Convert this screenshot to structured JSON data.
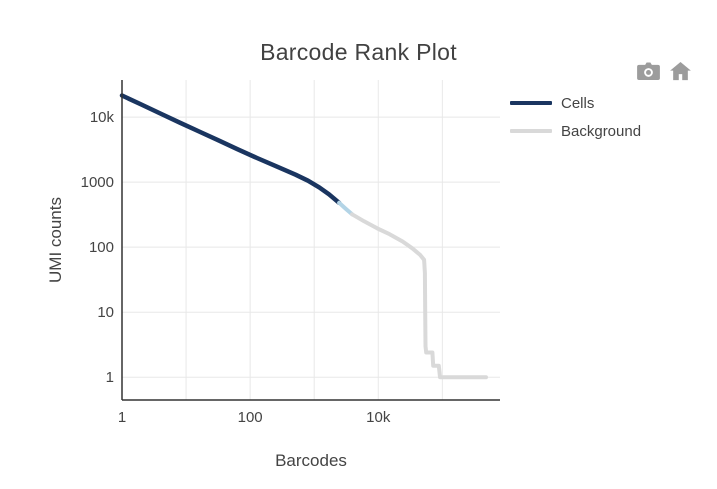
{
  "chart_data": {
    "type": "line",
    "title": "Barcode Rank Plot",
    "xlabel": "Barcodes",
    "ylabel": "UMI counts",
    "x_scale": "log",
    "y_scale": "log",
    "x_range_log10": [
      0,
      5.9
    ],
    "y_range_log10": [
      -0.35,
      4.57
    ],
    "grid": true,
    "legend_position": "right",
    "x_ticks": [
      {
        "value": 1,
        "label": "1"
      },
      {
        "value": 100,
        "label": "100"
      },
      {
        "value": 10000,
        "label": "10k"
      }
    ],
    "y_ticks": [
      {
        "value": 1,
        "label": "1"
      },
      {
        "value": 10,
        "label": "10"
      },
      {
        "value": 100,
        "label": "100"
      },
      {
        "value": 1000,
        "label": "1000"
      },
      {
        "value": 10000,
        "label": "10k"
      }
    ],
    "x_grid_decades": [
      1,
      2,
      3,
      4,
      5
    ],
    "y_grid_decades": [
      0,
      1,
      2,
      3,
      4
    ],
    "colors": {
      "grid": "#e8e8e8",
      "axis": "#333333",
      "tick_text": "#444444",
      "title_text": "#424242"
    },
    "series": [
      {
        "name": "Cells",
        "color": "#1a3560",
        "width": 4.5,
        "in_legend": true,
        "points": [
          [
            1,
            21500
          ],
          [
            2,
            15600
          ],
          [
            4,
            11300
          ],
          [
            8,
            8200
          ],
          [
            16,
            6000
          ],
          [
            32,
            4400
          ],
          [
            64,
            3200
          ],
          [
            128,
            2350
          ],
          [
            256,
            1750
          ],
          [
            512,
            1300
          ],
          [
            800,
            1050
          ],
          [
            1200,
            830
          ],
          [
            1700,
            650
          ],
          [
            2450,
            480
          ]
        ]
      },
      {
        "name": "Cells to background transition",
        "color": "#b3d4e6",
        "width": 4,
        "in_legend": false,
        "points": [
          [
            2450,
            480
          ],
          [
            3100,
            390
          ],
          [
            3900,
            320
          ]
        ]
      },
      {
        "name": "Background",
        "color": "#d9d9d9",
        "width": 4,
        "in_legend": true,
        "points": [
          [
            3900,
            320
          ],
          [
            6000,
            250
          ],
          [
            9600,
            195
          ],
          [
            15000,
            158
          ],
          [
            24000,
            122
          ],
          [
            34000,
            96
          ],
          [
            45000,
            76
          ],
          [
            52000,
            64
          ],
          [
            53500,
            40
          ],
          [
            54000,
            10
          ],
          [
            54500,
            3
          ],
          [
            56000,
            2.4
          ],
          [
            70000,
            2.4
          ],
          [
            72000,
            1.5
          ],
          [
            88000,
            1.5
          ],
          [
            92000,
            1
          ],
          [
            480000,
            1
          ]
        ]
      }
    ]
  },
  "modebar": {
    "icon_color": "#9c9c9c",
    "icons": [
      {
        "name": "camera-icon"
      },
      {
        "name": "home-icon"
      }
    ]
  }
}
